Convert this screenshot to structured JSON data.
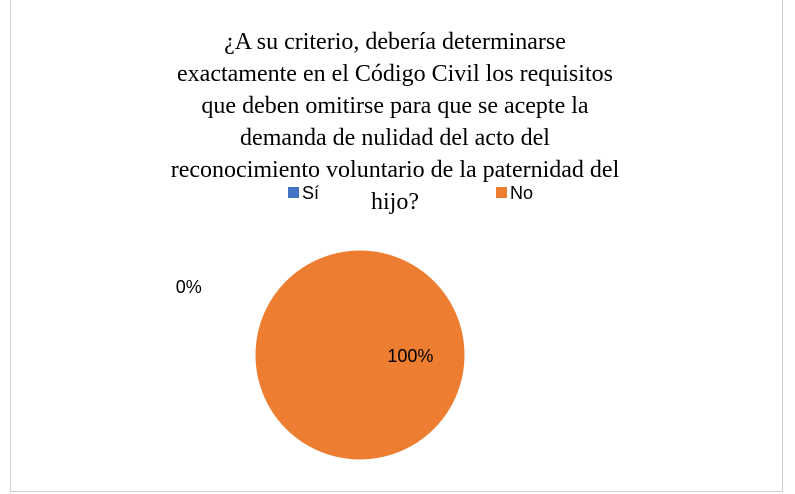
{
  "chart_data": {
    "type": "pie",
    "title": "¿A su criterio, debería determinarse exactamente en el Código Civil los requisitos que deben omitirse para que se acepte la demanda de nulidad del acto del reconocimiento voluntario de la paternidad del hijo?",
    "categories": [
      "Sí",
      "No"
    ],
    "values": [
      0,
      100
    ],
    "value_labels": [
      "0%",
      "100%"
    ],
    "colors": [
      "#4472c4",
      "#ed7d31"
    ],
    "legend": "top"
  }
}
